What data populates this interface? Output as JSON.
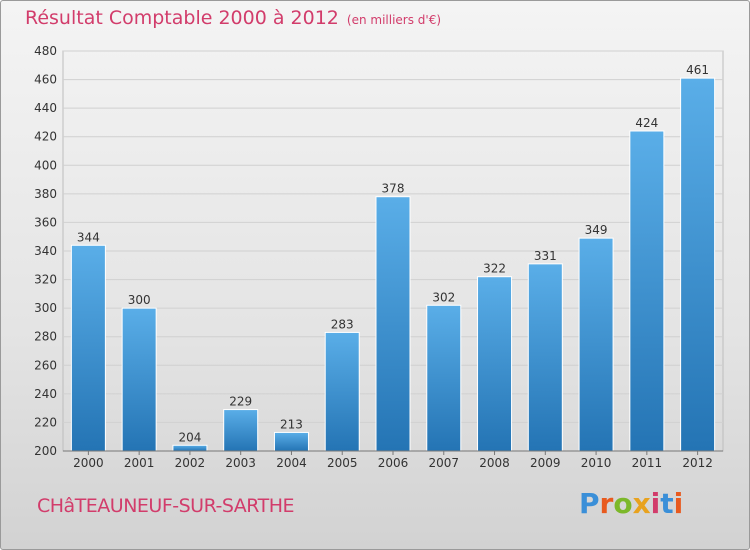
{
  "header": {
    "title": "Résultat Comptable 2000 à 2012",
    "subtitle": "(en milliers d'€)"
  },
  "footer": {
    "commune": "CHâTEAUNEUF-SUR-SARTHE",
    "brand": "Proxiti"
  },
  "colors": {
    "bar_top": "#5aaee8",
    "bar_bottom": "#2474b4",
    "title": "#d23c6b",
    "logo": [
      "#3a8fd8",
      "#e85a1e",
      "#7cb82a",
      "#e8a21e",
      "#d23c6b",
      "#3a8fd8",
      "#e85a1e"
    ]
  },
  "chart_data": {
    "type": "bar",
    "title": "Résultat Comptable 2000 à 2012",
    "subtitle": "(en milliers d'€)",
    "categories": [
      "2000",
      "2001",
      "2002",
      "2003",
      "2004",
      "2005",
      "2006",
      "2007",
      "2008",
      "2009",
      "2010",
      "2011",
      "2012"
    ],
    "values": [
      344,
      300,
      204,
      229,
      213,
      283,
      378,
      302,
      322,
      331,
      349,
      424,
      461
    ],
    "ylim": [
      200,
      480
    ],
    "yticks": [
      200,
      220,
      240,
      260,
      280,
      300,
      320,
      340,
      360,
      380,
      400,
      420,
      440,
      460,
      480
    ],
    "grid": true,
    "data_labels": true
  }
}
